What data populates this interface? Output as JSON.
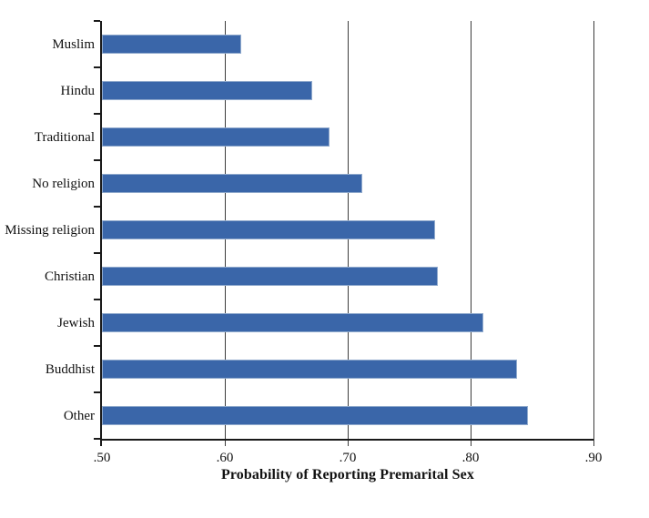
{
  "chart_data": {
    "type": "bar",
    "orientation": "horizontal",
    "title": "",
    "categories": [
      "Muslim",
      "Hindu",
      "Traditional",
      "No religion",
      "Missing religion",
      "Christian",
      "Jewish",
      "Buddhist",
      "Other"
    ],
    "values": [
      0.613,
      0.671,
      0.685,
      0.712,
      0.771,
      0.773,
      0.81,
      0.838,
      0.847
    ],
    "xlabel": "Probability of Reporting Premarital Sex",
    "ylabel": "",
    "xlim": [
      0.5,
      0.9
    ],
    "xticks": [
      0.5,
      0.6,
      0.7,
      0.8,
      0.9
    ],
    "xtick_labels": [
      ".50",
      ".60",
      ".70",
      ".80",
      ".90"
    ],
    "grid": "vertical gridlines at tick positions, drawn behind bars",
    "legend_position": "none",
    "bar_color": "#3a66a9",
    "bar_border_color": "#8fa9cc",
    "axis_color": "#1a1a1a",
    "gridline_color": "#3c3c3c",
    "background_color": "#ffffff"
  }
}
